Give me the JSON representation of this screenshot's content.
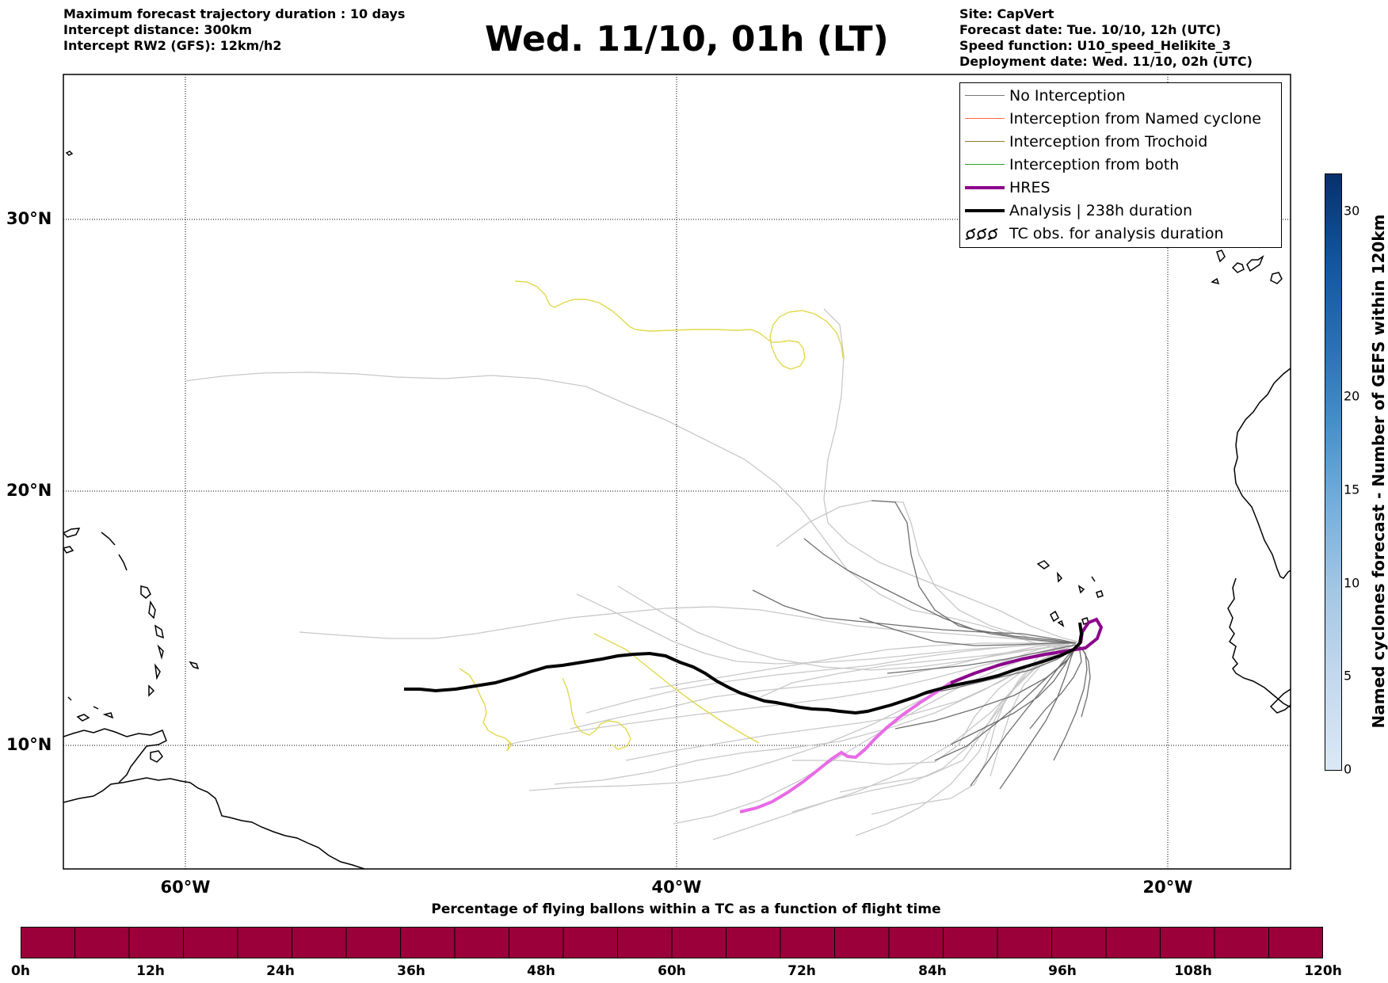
{
  "header_left": [
    "Maximum forecast trajectory duration : 10 days",
    "Intercept distance: 300km",
    "Intercept RW2 (GFS):  12km/h2"
  ],
  "title": "Wed. 11/10, 01h (LT)",
  "header_right": [
    "Site: CapVert",
    "Forecast date: Tue. 10/10, 12h (UTC)",
    "Speed function: U10_speed_Helikite_3",
    "Deployment date: Wed. 11/10, 02h (UTC)"
  ],
  "map": {
    "lat_labels": [
      "30°N",
      "20°N",
      "10°N"
    ],
    "lon_labels": [
      "60°W",
      "40°W",
      "20°W"
    ],
    "grid": true
  },
  "legend": [
    {
      "label": "No Interception",
      "color": "#777777",
      "style": "line"
    },
    {
      "label": "Interception from Named cyclone",
      "color": "#ff6a3d",
      "style": "line"
    },
    {
      "label": "Interception from Trochoid",
      "color": "#8b7d2a",
      "style": "line"
    },
    {
      "label": "Interception from both",
      "color": "#2ca02c",
      "style": "line"
    },
    {
      "label": "HRES",
      "color": "#8b008b",
      "style": "thick"
    },
    {
      "label": "Analysis | 238h duration",
      "color": "#000000",
      "style": "thick"
    },
    {
      "label": "TC obs. for analysis duration",
      "color": "#000000",
      "style": "symbol"
    }
  ],
  "colorbar_right": {
    "label": "Named cyclones forecast - Number of GEFS within 120km",
    "ticks": [
      "0",
      "5",
      "10",
      "15",
      "20",
      "30"
    ],
    "colors": [
      "#dbe8f6",
      "#a3c7e4",
      "#4690c9",
      "#08306b"
    ]
  },
  "colorbar_bottom": {
    "title": "Percentage of flying ballons within a TC as a function of flight time",
    "ticks": [
      "0h",
      "12h",
      "24h",
      "36h",
      "48h",
      "60h",
      "72h",
      "84h",
      "96h",
      "108h",
      "120h"
    ],
    "color": "#9b003a"
  }
}
